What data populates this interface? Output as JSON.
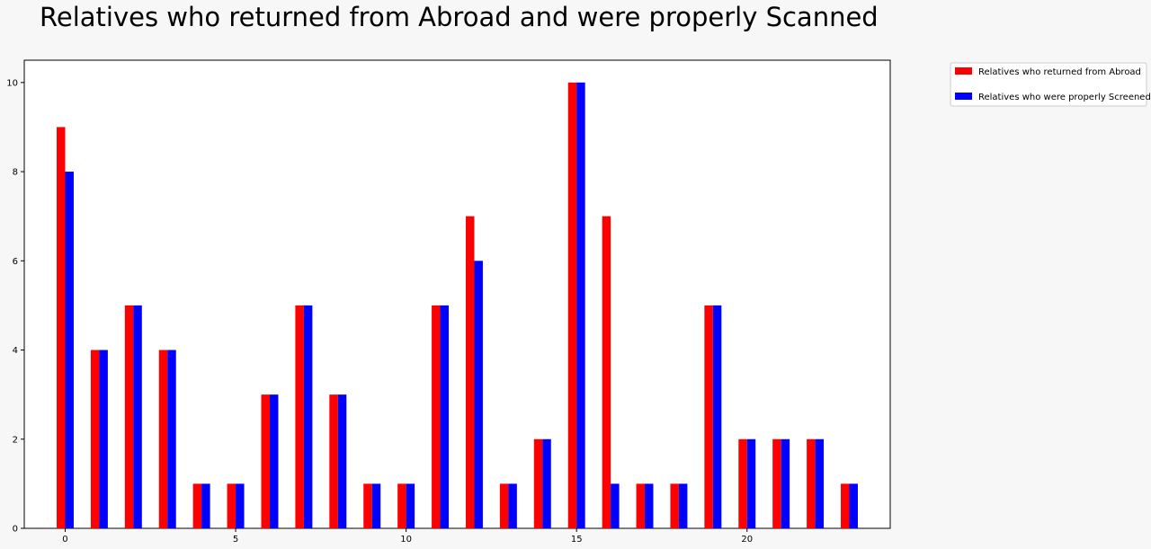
{
  "chart_data": {
    "type": "bar",
    "title": "Relatives who returned from Abroad and were properly Scanned",
    "xlabel": "",
    "ylabel": "",
    "x": [
      0,
      1,
      2,
      3,
      4,
      5,
      6,
      7,
      8,
      9,
      10,
      11,
      12,
      13,
      14,
      15,
      16,
      17,
      18,
      19,
      20,
      21,
      22,
      23
    ],
    "xticks": [
      0,
      5,
      10,
      15,
      20
    ],
    "yticks": [
      0,
      2,
      4,
      6,
      8,
      10
    ],
    "xlim": [
      -1.2,
      24.2
    ],
    "ylim": [
      0,
      10.5
    ],
    "grid": false,
    "legend_position": "outside-top-right",
    "series": [
      {
        "name": "Relatives who returned from Abroad",
        "color": "#ff0000",
        "values": [
          9,
          4,
          5,
          4,
          1,
          1,
          3,
          5,
          3,
          1,
          1,
          5,
          7,
          1,
          2,
          10,
          7,
          1,
          1,
          5,
          2,
          2,
          2,
          1
        ]
      },
      {
        "name": "Relatives who were properly Screened",
        "color": "#0000ff",
        "values": [
          8,
          4,
          5,
          4,
          1,
          1,
          3,
          5,
          3,
          1,
          1,
          5,
          6,
          1,
          2,
          10,
          1,
          1,
          1,
          5,
          2,
          2,
          2,
          1
        ]
      }
    ]
  }
}
